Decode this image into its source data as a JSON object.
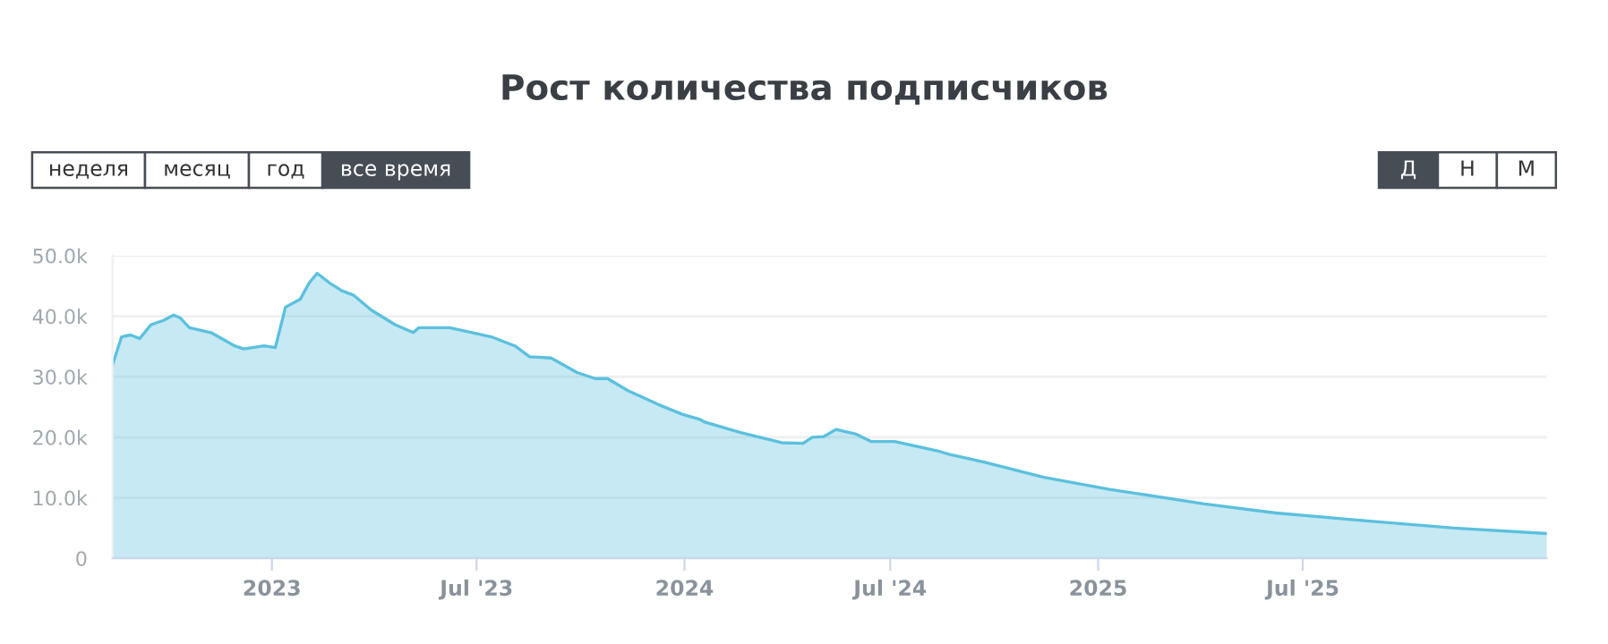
{
  "chart_data": {
    "type": "area",
    "title": "Рост количества подписчиков",
    "annotations": [
      "неделя",
      "месяц",
      "год",
      "все время",
      "Д",
      "Н",
      "М"
    ],
    "x": [
      "2022-08-13",
      "2022-08-21",
      "2022-08-29",
      "2022-09-06",
      "2022-09-16",
      "2022-09-27",
      "2022-10-06",
      "2022-10-12",
      "2022-10-20",
      "2022-11-08",
      "2022-11-29",
      "2022-12-07",
      "2022-12-25",
      "2023-01-04",
      "2023-01-13",
      "2023-01-26",
      "2023-02-03",
      "2023-02-10",
      "2023-02-21",
      "2023-03-04",
      "2023-03-14",
      "2023-03-30",
      "2023-04-20",
      "2023-05-06",
      "2023-05-11",
      "2023-06-07",
      "2023-06-20",
      "2023-07-14",
      "2023-08-04",
      "2023-08-17",
      "2023-09-05",
      "2023-09-28",
      "2023-10-14",
      "2023-10-25",
      "2023-11-12",
      "2023-12-09",
      "2023-12-30",
      "2024-01-14",
      "2024-01-19",
      "2024-02-19",
      "2024-03-27",
      "2024-04-15",
      "2024-04-23",
      "2024-05-03",
      "2024-05-14",
      "2024-06-01",
      "2024-06-14",
      "2024-07-05",
      "2024-08-11",
      "2024-08-22",
      "2024-09-22",
      "2024-11-14",
      "2025-01-11",
      "2025-04-05",
      "2025-06-07",
      "2025-08-20",
      "2025-11-12",
      "2026-02-02"
    ],
    "series": [
      {
        "color": "#5bc0de",
        "values": [
          32000,
          36600,
          36900,
          36300,
          38600,
          39300,
          40200,
          39700,
          38100,
          37300,
          35100,
          34600,
          35100,
          34800,
          41500,
          42800,
          45500,
          47100,
          45500,
          44200,
          43500,
          41000,
          38600,
          37300,
          38100,
          38100,
          37600,
          36600,
          35100,
          33300,
          33100,
          30700,
          29700,
          29700,
          27700,
          25400,
          23800,
          23000,
          22500,
          20800,
          19100,
          19000,
          20000,
          20100,
          21300,
          20500,
          19300,
          19300,
          17800,
          17200,
          15900,
          13400,
          11400,
          9000,
          7500,
          6300,
          5000,
          4100
        ]
      }
    ],
    "xlim": [
      "2022-08-13",
      "2026-02-02"
    ],
    "xticks": [
      {
        "value": "2023-01-01",
        "label": "2023"
      },
      {
        "value": "2023-07-01",
        "label": "Jul '23"
      },
      {
        "value": "2024-01-01",
        "label": "2024"
      },
      {
        "value": "2024-07-01",
        "label": "Jul '24"
      },
      {
        "value": "2025-01-01",
        "label": "2025"
      },
      {
        "value": "2025-07-01",
        "label": "Jul '25"
      }
    ],
    "ylim": [
      0,
      50000
    ],
    "yticks": [
      0,
      {
        "value": 10000,
        "label": "10.0k"
      },
      {
        "value": 20000,
        "label": "20.0k"
      },
      {
        "value": 30000,
        "label": "30.0k"
      },
      {
        "value": 40000,
        "label": "40.0k"
      },
      {
        "value": 50000,
        "label": "50.0k"
      }
    ],
    "grid": "y",
    "legend": false
  }
}
